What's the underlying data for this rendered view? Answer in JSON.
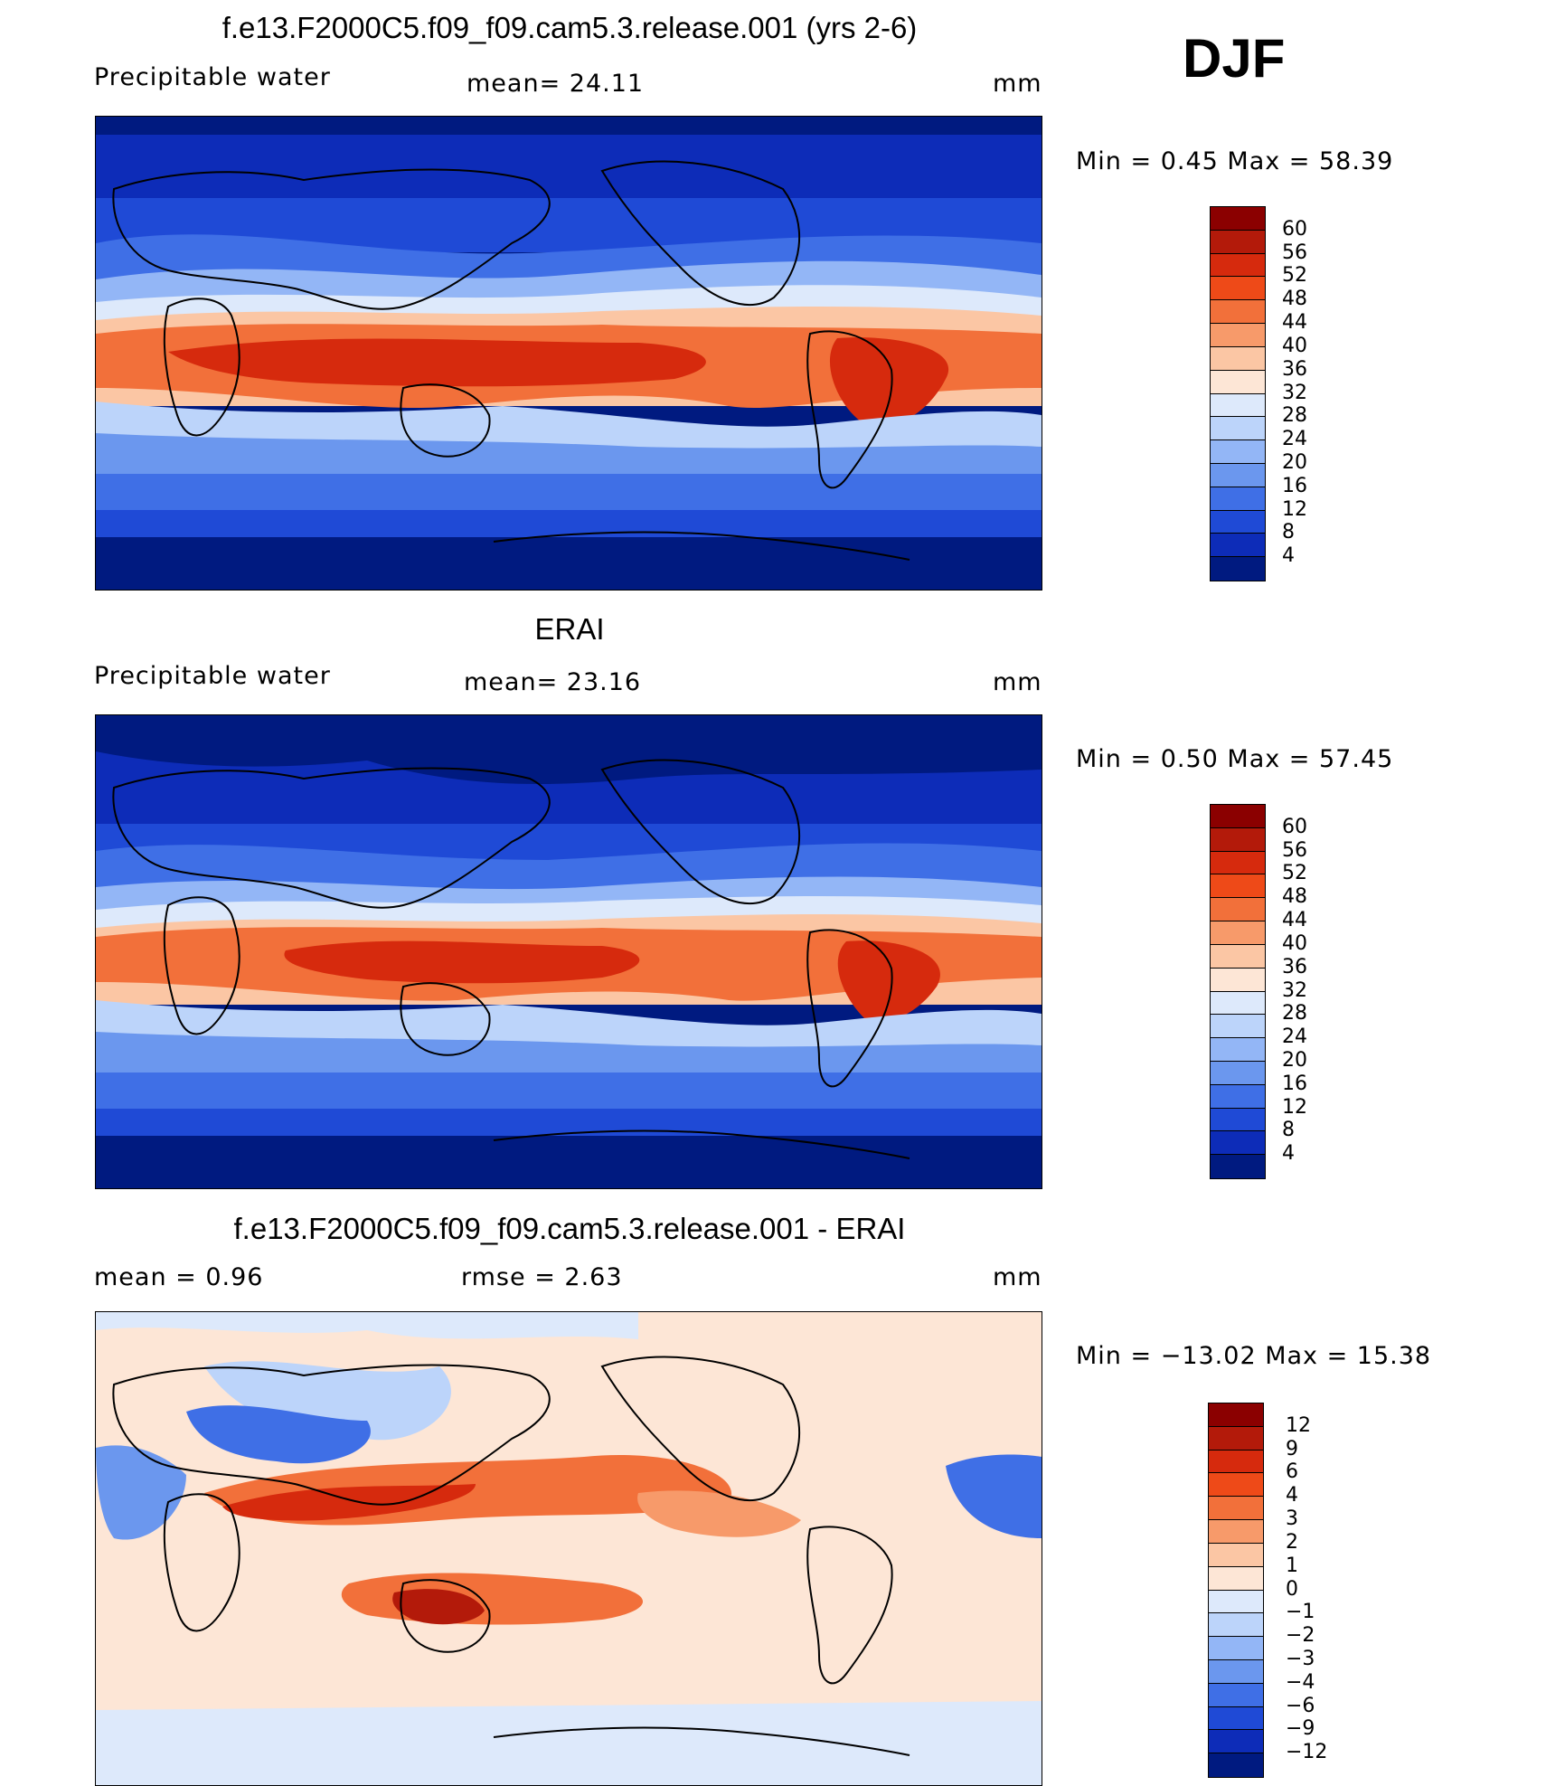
{
  "season": "DJF",
  "panels": [
    {
      "title": "f.e13.F2000C5.f09_f09.cam5.3.release.001 (yrs 2-6)",
      "left_label": "Precipitable  water",
      "center_label": "mean=   24.11",
      "units": "mm",
      "minmax": "Min  =     0.45  Max  =    58.39",
      "colorbar": {
        "levels": [
          "60",
          "56",
          "52",
          "48",
          "44",
          "40",
          "36",
          "32",
          "28",
          "24",
          "20",
          "16",
          "12",
          "8",
          "4"
        ],
        "colors": [
          "#8b0000",
          "#b31a0a",
          "#d62a0d",
          "#ee4a18",
          "#f2703a",
          "#f79a6a",
          "#fbc6a4",
          "#fde6d6",
          "#dde9fb",
          "#bcd4fa",
          "#93b6f6",
          "#6b97ee",
          "#3f6fe6",
          "#1f4ad6",
          "#0d2cb8",
          "#001a80"
        ]
      }
    },
    {
      "title": "ERAI",
      "left_label": "Precipitable  water",
      "center_label": "mean=   23.16",
      "units": "mm",
      "minmax": "Min  =     0.50  Max  =    57.45",
      "colorbar": {
        "levels": [
          "60",
          "56",
          "52",
          "48",
          "44",
          "40",
          "36",
          "32",
          "28",
          "24",
          "20",
          "16",
          "12",
          "8",
          "4"
        ],
        "colors": [
          "#8b0000",
          "#b31a0a",
          "#d62a0d",
          "#ee4a18",
          "#f2703a",
          "#f79a6a",
          "#fbc6a4",
          "#fde6d6",
          "#dde9fb",
          "#bcd4fa",
          "#93b6f6",
          "#6b97ee",
          "#3f6fe6",
          "#1f4ad6",
          "#0d2cb8",
          "#001a80"
        ]
      }
    },
    {
      "title": "f.e13.F2000C5.f09_f09.cam5.3.release.001 - ERAI",
      "left_label": "mean  =     0.96",
      "center_label": "rmse  =     2.63",
      "units": "mm",
      "minmax": "Min  = −13.02  Max  =    15.38",
      "colorbar": {
        "levels": [
          "12",
          "9",
          "6",
          "4",
          "3",
          "2",
          "1",
          "0",
          "−1",
          "−2",
          "−3",
          "−4",
          "−6",
          "−9",
          "−12"
        ],
        "colors": [
          "#8b0000",
          "#b31a0a",
          "#d62a0d",
          "#ee4a18",
          "#f2703a",
          "#f79a6a",
          "#fbc6a4",
          "#fde6d6",
          "#dde9fb",
          "#bcd4fa",
          "#93b6f6",
          "#6b97ee",
          "#3f6fe6",
          "#1f4ad6",
          "#0d2cb8",
          "#001a80"
        ]
      }
    }
  ]
}
